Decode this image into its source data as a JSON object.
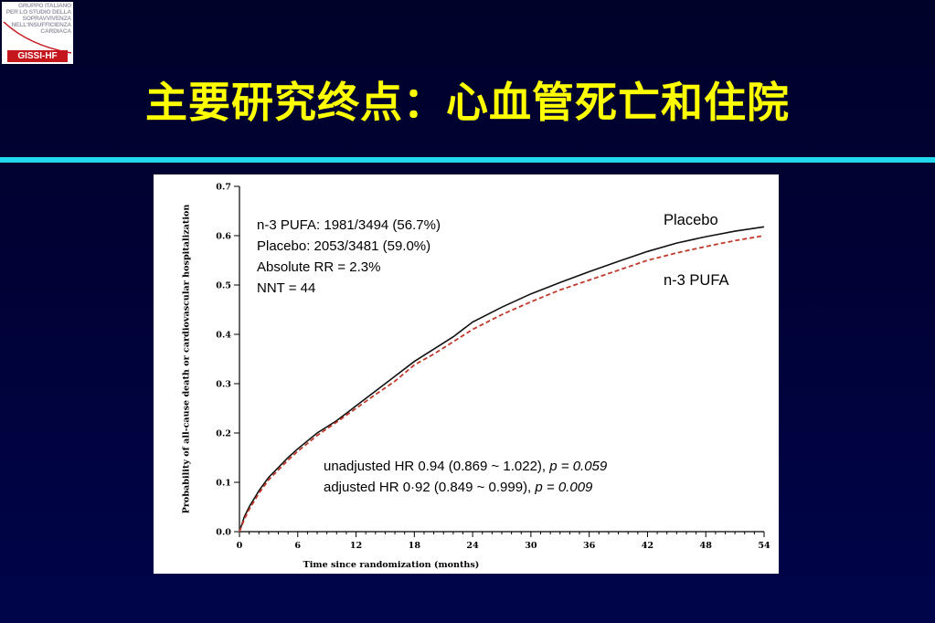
{
  "logo": {
    "lines": [
      "GRUPPO ITALIANO",
      "PER LO STUDIO DELLA",
      "SOPRAVVIVENZA",
      "NELL'INSUFFICIENZA",
      "CARDIACA"
    ],
    "badge": "GISSI-HF"
  },
  "slide": {
    "title": "主要研究终点：心血管死亡和住院"
  },
  "colors": {
    "background": "#000236",
    "title": "#ffff00",
    "rule": "#22d8ee",
    "placebo_line": "#111111",
    "pufa_line": "#c0392b"
  },
  "annotations": {
    "stats": [
      "n-3 PUFA: 1981/3494 (56.7%)",
      "Placebo: 2053/3481 (59.0%)",
      "Absolute RR = 2.3%",
      "NNT = 44"
    ],
    "hr_unadjusted_text": "unadjusted HR 0.94 (0.869 ~ 1.022), ",
    "hr_unadjusted_p": "p = 0.059",
    "hr_adjusted_text": "adjusted HR 0·92 (0.849 ~ 0.999), ",
    "hr_adjusted_p": "p = 0.009"
  },
  "chart_data": {
    "type": "line",
    "xlabel": "Time since randomization (months)",
    "ylabel": "Probability of all-cause death or cardiovascular hospitalization",
    "xlim": [
      0,
      54
    ],
    "ylim": [
      0,
      0.7
    ],
    "xticks": [
      0,
      6,
      12,
      18,
      24,
      30,
      36,
      42,
      48,
      54
    ],
    "yticks": [
      0.0,
      0.1,
      0.2,
      0.3,
      0.4,
      0.5,
      0.6,
      0.7
    ],
    "ytick_labels": [
      "0.0",
      "0.1",
      "0.2",
      "0.3",
      "0.4",
      "0.5",
      "0.6",
      "0.7"
    ],
    "grid": false,
    "legend": "inline labels at right end of lines",
    "series": [
      {
        "name": "Placebo",
        "style": "solid",
        "x": [
          0,
          0.5,
          1,
          2,
          3,
          4,
          5,
          6,
          8,
          10,
          12,
          14,
          16,
          18,
          20,
          22,
          24,
          27,
          30,
          33,
          36,
          39,
          42,
          45,
          48,
          51,
          54
        ],
        "y": [
          0,
          0.03,
          0.05,
          0.083,
          0.11,
          0.13,
          0.15,
          0.168,
          0.2,
          0.225,
          0.255,
          0.285,
          0.315,
          0.345,
          0.37,
          0.395,
          0.425,
          0.455,
          0.482,
          0.505,
          0.527,
          0.548,
          0.568,
          0.585,
          0.598,
          0.609,
          0.618
        ]
      },
      {
        "name": "n-3 PUFA",
        "style": "dashed",
        "x": [
          0,
          0.5,
          1,
          2,
          3,
          4,
          5,
          6,
          8,
          10,
          12,
          14,
          16,
          18,
          20,
          22,
          24,
          27,
          30,
          33,
          36,
          39,
          42,
          45,
          48,
          51,
          54
        ],
        "y": [
          0,
          0.025,
          0.045,
          0.078,
          0.105,
          0.125,
          0.145,
          0.163,
          0.195,
          0.222,
          0.25,
          0.278,
          0.305,
          0.338,
          0.36,
          0.385,
          0.41,
          0.44,
          0.466,
          0.49,
          0.51,
          0.53,
          0.55,
          0.565,
          0.578,
          0.59,
          0.6
        ]
      }
    ]
  }
}
